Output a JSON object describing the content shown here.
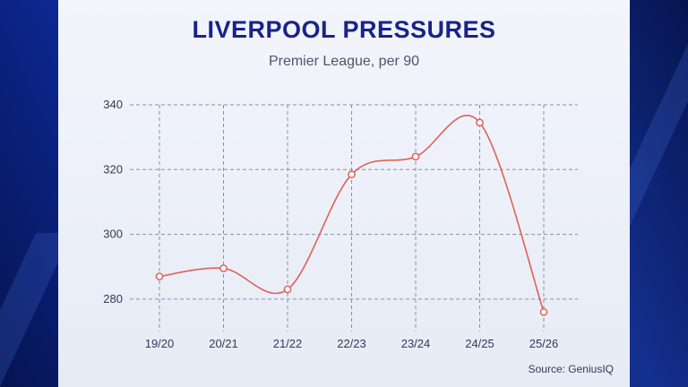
{
  "chart_data": {
    "type": "line",
    "title": "LIVERPOOL PRESSURES",
    "subtitle": "Premier League, per 90",
    "source": "Source: GeniusIQ",
    "categories": [
      "19/20",
      "20/21",
      "21/22",
      "22/23",
      "23/24",
      "24/25",
      "25/26"
    ],
    "series": [
      {
        "name": "Pressures per 90",
        "values": [
          287,
          289.5,
          283,
          318.5,
          324,
          334.5,
          276
        ]
      }
    ],
    "ylim": [
      270,
      340
    ],
    "yticks": [
      280,
      300,
      320,
      340
    ],
    "xlabel": "",
    "ylabel": "",
    "grid": true,
    "line_color": "#e0605a"
  }
}
